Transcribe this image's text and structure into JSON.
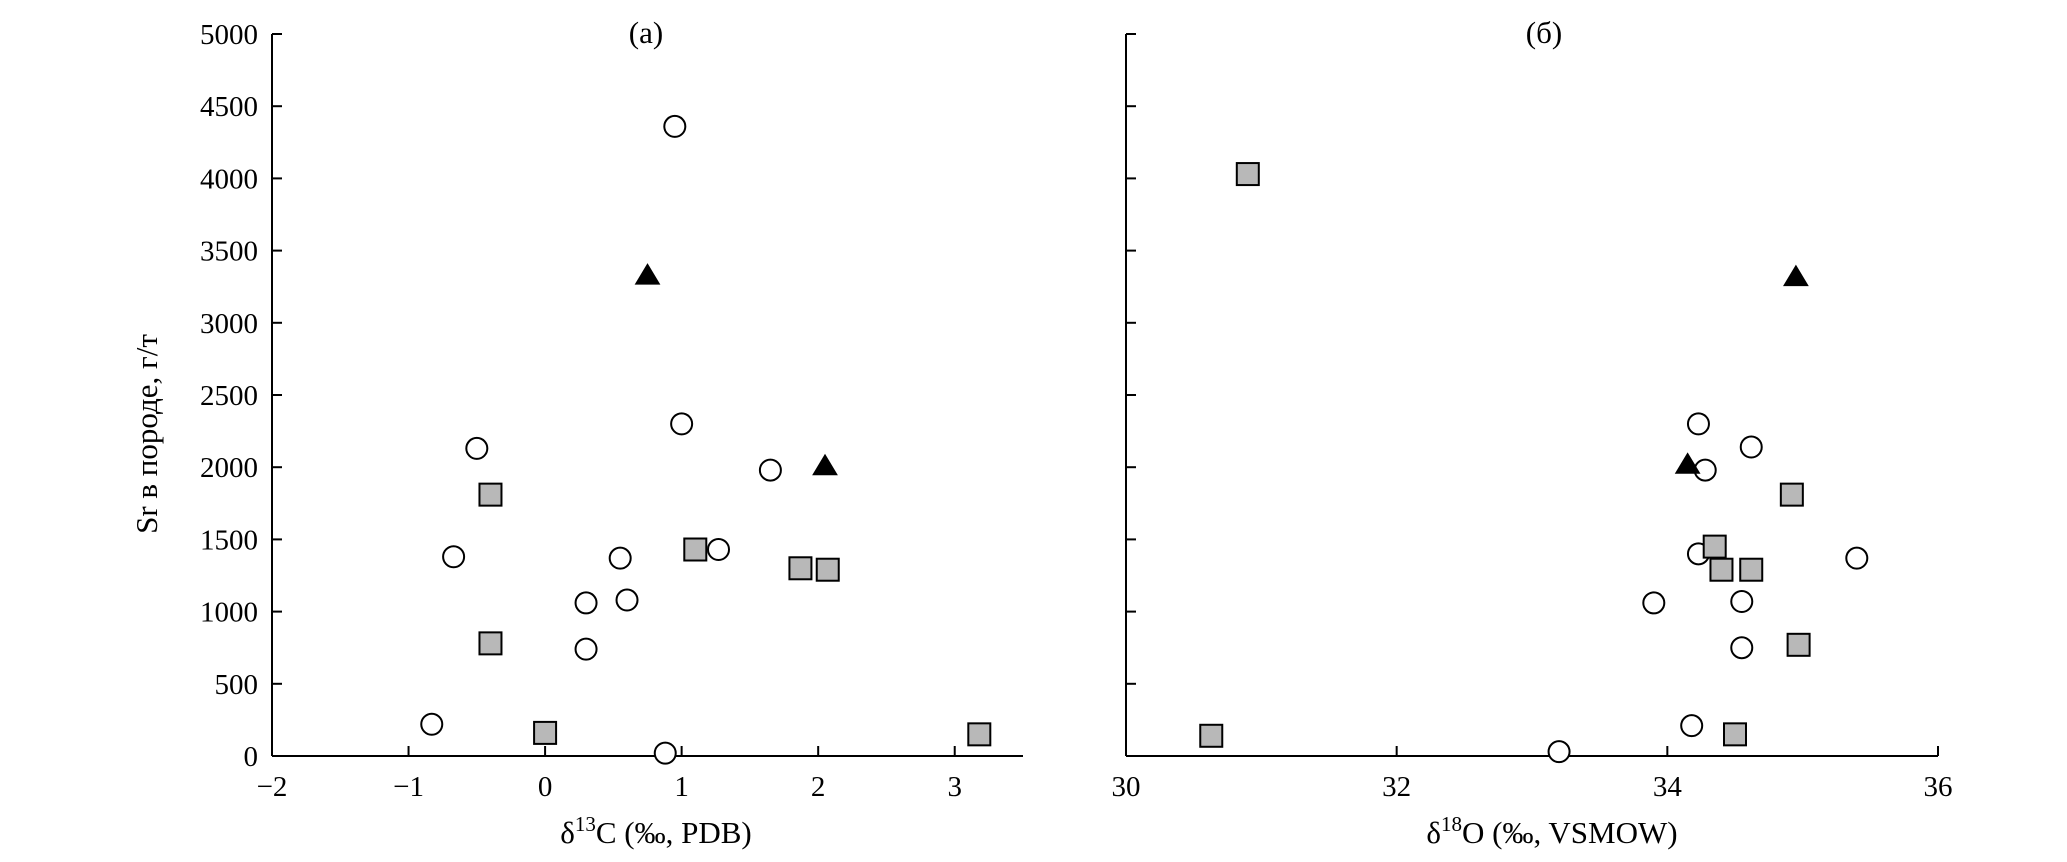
{
  "y_axis_title": "Sr в породе, г/т",
  "chart_data": [
    {
      "type": "scatter",
      "title": "(а)",
      "xlabel": "δ13C (‰, PDB)",
      "xlabel_parts": {
        "symbol": "δ",
        "superscript": "13",
        "rest": "C (‰, PDB)"
      },
      "ylabel": "Sr в породе, г/т",
      "xlim": [
        -2,
        3.5
      ],
      "ylim": [
        0,
        5000
      ],
      "x_ticks": [
        -2,
        -1,
        0,
        1,
        2,
        3
      ],
      "x_tick_labels": [
        "−2",
        "−1",
        "0",
        "1",
        "2",
        "3"
      ],
      "y_ticks": [
        0,
        500,
        1000,
        1500,
        2000,
        2500,
        3000,
        3500,
        4000,
        4500,
        5000
      ],
      "y_tick_labels": [
        "0",
        "500",
        "1000",
        "1500",
        "2000",
        "2500",
        "3000",
        "3500",
        "4000",
        "4500",
        "5000"
      ],
      "grid": false,
      "series": [
        {
          "marker": "circle-open",
          "points": [
            [
              0.95,
              4360
            ],
            [
              -0.5,
              2130
            ],
            [
              1.0,
              2300
            ],
            [
              -0.67,
              1380
            ],
            [
              0.55,
              1370
            ],
            [
              1.27,
              1430
            ],
            [
              1.65,
              1980
            ],
            [
              0.3,
              1060
            ],
            [
              0.6,
              1080
            ],
            [
              0.3,
              740
            ],
            [
              -0.83,
              220
            ],
            [
              0.88,
              20
            ]
          ]
        },
        {
          "marker": "square-gray",
          "points": [
            [
              -0.4,
              1810
            ],
            [
              1.1,
              1430
            ],
            [
              1.87,
              1300
            ],
            [
              2.07,
              1290
            ],
            [
              -0.4,
              780
            ],
            [
              0.0,
              160
            ],
            [
              3.18,
              150
            ]
          ]
        },
        {
          "marker": "triangle-filled",
          "points": [
            [
              0.75,
              3330
            ],
            [
              2.05,
              2010
            ]
          ]
        }
      ]
    },
    {
      "type": "scatter",
      "title": "(б)",
      "xlabel": "δ18O (‰, VSMOW)",
      "xlabel_parts": {
        "symbol": "δ",
        "superscript": "18",
        "rest": "O (‰, VSMOW)"
      },
      "xlim": [
        30,
        36
      ],
      "ylim": [
        0,
        5000
      ],
      "x_ticks": [
        30,
        32,
        34,
        36
      ],
      "x_tick_labels": [
        "30",
        "32",
        "34",
        "36"
      ],
      "y_ticks": [
        0,
        500,
        1000,
        1500,
        2000,
        2500,
        3000,
        3500,
        4000,
        4500,
        5000
      ],
      "grid": false,
      "series": [
        {
          "marker": "circle-open",
          "points": [
            [
              34.23,
              2300
            ],
            [
              34.62,
              2140
            ],
            [
              34.28,
              1980
            ],
            [
              34.23,
              1400
            ],
            [
              35.4,
              1370
            ],
            [
              33.9,
              1060
            ],
            [
              34.55,
              1070
            ],
            [
              34.55,
              750
            ],
            [
              34.18,
              210
            ],
            [
              33.2,
              30
            ]
          ]
        },
        {
          "marker": "square-gray",
          "points": [
            [
              30.9,
              4030
            ],
            [
              34.92,
              1810
            ],
            [
              34.35,
              1450
            ],
            [
              34.4,
              1290
            ],
            [
              34.62,
              1290
            ],
            [
              34.97,
              770
            ],
            [
              30.63,
              140
            ],
            [
              34.5,
              150
            ]
          ]
        },
        {
          "marker": "triangle-filled",
          "points": [
            [
              34.95,
              3320
            ],
            [
              34.15,
              2020
            ]
          ]
        }
      ]
    }
  ]
}
